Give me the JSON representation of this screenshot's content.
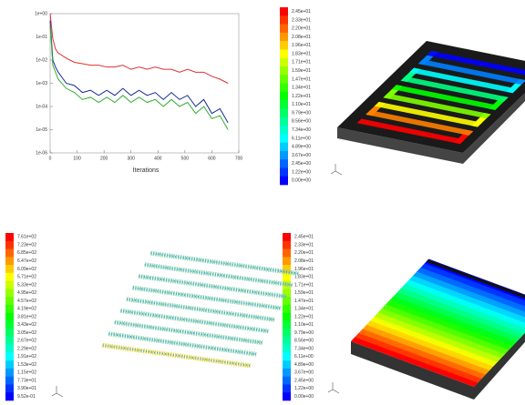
{
  "chart_data": {
    "type": "line",
    "xlabel": "Iterations",
    "log_y": true,
    "x": [
      0,
      10,
      20,
      30,
      60,
      90,
      120,
      150,
      180,
      210,
      240,
      270,
      300,
      330,
      360,
      390,
      420,
      450,
      480,
      510,
      540,
      570,
      600,
      630,
      660
    ],
    "series": [
      {
        "color": "#e03030",
        "values": [
          1,
          0.08,
          0.03,
          0.02,
          0.012,
          0.008,
          0.007,
          0.006,
          0.006,
          0.005,
          0.005,
          0.006,
          0.004,
          0.005,
          0.004,
          0.005,
          0.004,
          0.004,
          0.003,
          0.004,
          0.003,
          0.003,
          0.002,
          0.0015,
          0.001
        ]
      },
      {
        "color": "#1a2a9a",
        "values": [
          0.5,
          0.01,
          0.005,
          0.003,
          0.001,
          0.0008,
          0.0004,
          0.0005,
          0.0003,
          0.0005,
          0.0003,
          0.0006,
          0.0003,
          0.0005,
          0.0003,
          0.0004,
          0.0002,
          0.0004,
          0.0002,
          0.0003,
          0.0001,
          0.0002,
          5e-05,
          8e-05,
          2e-05
        ]
      },
      {
        "color": "#30b030",
        "values": [
          0.3,
          0.006,
          0.003,
          0.0015,
          0.0006,
          0.0004,
          0.0002,
          0.00025,
          0.00015,
          0.00025,
          0.00015,
          0.0003,
          0.00015,
          0.00025,
          0.00015,
          0.0002,
          0.0001,
          0.0002,
          0.0001,
          0.00015,
          5e-05,
          0.0001,
          3e-05,
          4e-05,
          1e-05
        ]
      }
    ],
    "xlim": [
      0,
      700
    ],
    "xticks": [
      0,
      100,
      200,
      300,
      400,
      500,
      600,
      700
    ],
    "ylim": [
      1e-06,
      1
    ],
    "yticks": [
      {
        "value": 1,
        "label": "1e+00"
      },
      {
        "value": 0.1,
        "label": "1e-01"
      },
      {
        "value": 0.01,
        "label": "1e-02"
      },
      {
        "value": 0.001,
        "label": "1e-03"
      },
      {
        "value": 0.0001,
        "label": "1e-04"
      },
      {
        "value": 1e-05,
        "label": "1e-05"
      },
      {
        "value": 1e-06,
        "label": "1e-06"
      }
    ]
  },
  "colorbars": [
    {
      "labels": [
        "2.45e+01",
        "2.33e+01",
        "2.20e+01",
        "2.08e+01",
        "1.96e+01",
        "1.83e+01",
        "1.71e+01",
        "1.59e+01",
        "1.47e+01",
        "1.34e+01",
        "1.22e+01",
        "1.10e+01",
        "9.79e+00",
        "8.56e+00",
        "7.34e+00",
        "6.11e+00",
        "4.89e+00",
        "3.67e+00",
        "2.45e+00",
        "1.22e+00",
        "0.00e+00"
      ]
    },
    {
      "labels": [
        "7.61e+02",
        "7.23e+02",
        "6.85e+02",
        "6.47e+02",
        "6.09e+02",
        "5.71e+02",
        "5.33e+02",
        "4.95e+02",
        "4.57e+02",
        "4.19e+02",
        "3.81e+02",
        "3.43e+02",
        "3.05e+02",
        "2.67e+02",
        "2.29e+02",
        "1.91e+02",
        "1.53e+02",
        "1.15e+02",
        "7.73e+01",
        "3.90e+01",
        "9.52e-01"
      ]
    },
    {
      "labels": [
        "2.45e+01",
        "2.33e+01",
        "2.20e+01",
        "2.08e+01",
        "1.96e+01",
        "1.83e+01",
        "1.71e+01",
        "1.59e+01",
        "1.47e+01",
        "1.34e+01",
        "1.22e+01",
        "1.10e+01",
        "9.79e+00",
        "8.56e+00",
        "7.34e+00",
        "6.11e+00",
        "4.89e+00",
        "3.67e+00",
        "2.45e+00",
        "1.22e+00",
        "0.00e+00"
      ]
    }
  ]
}
